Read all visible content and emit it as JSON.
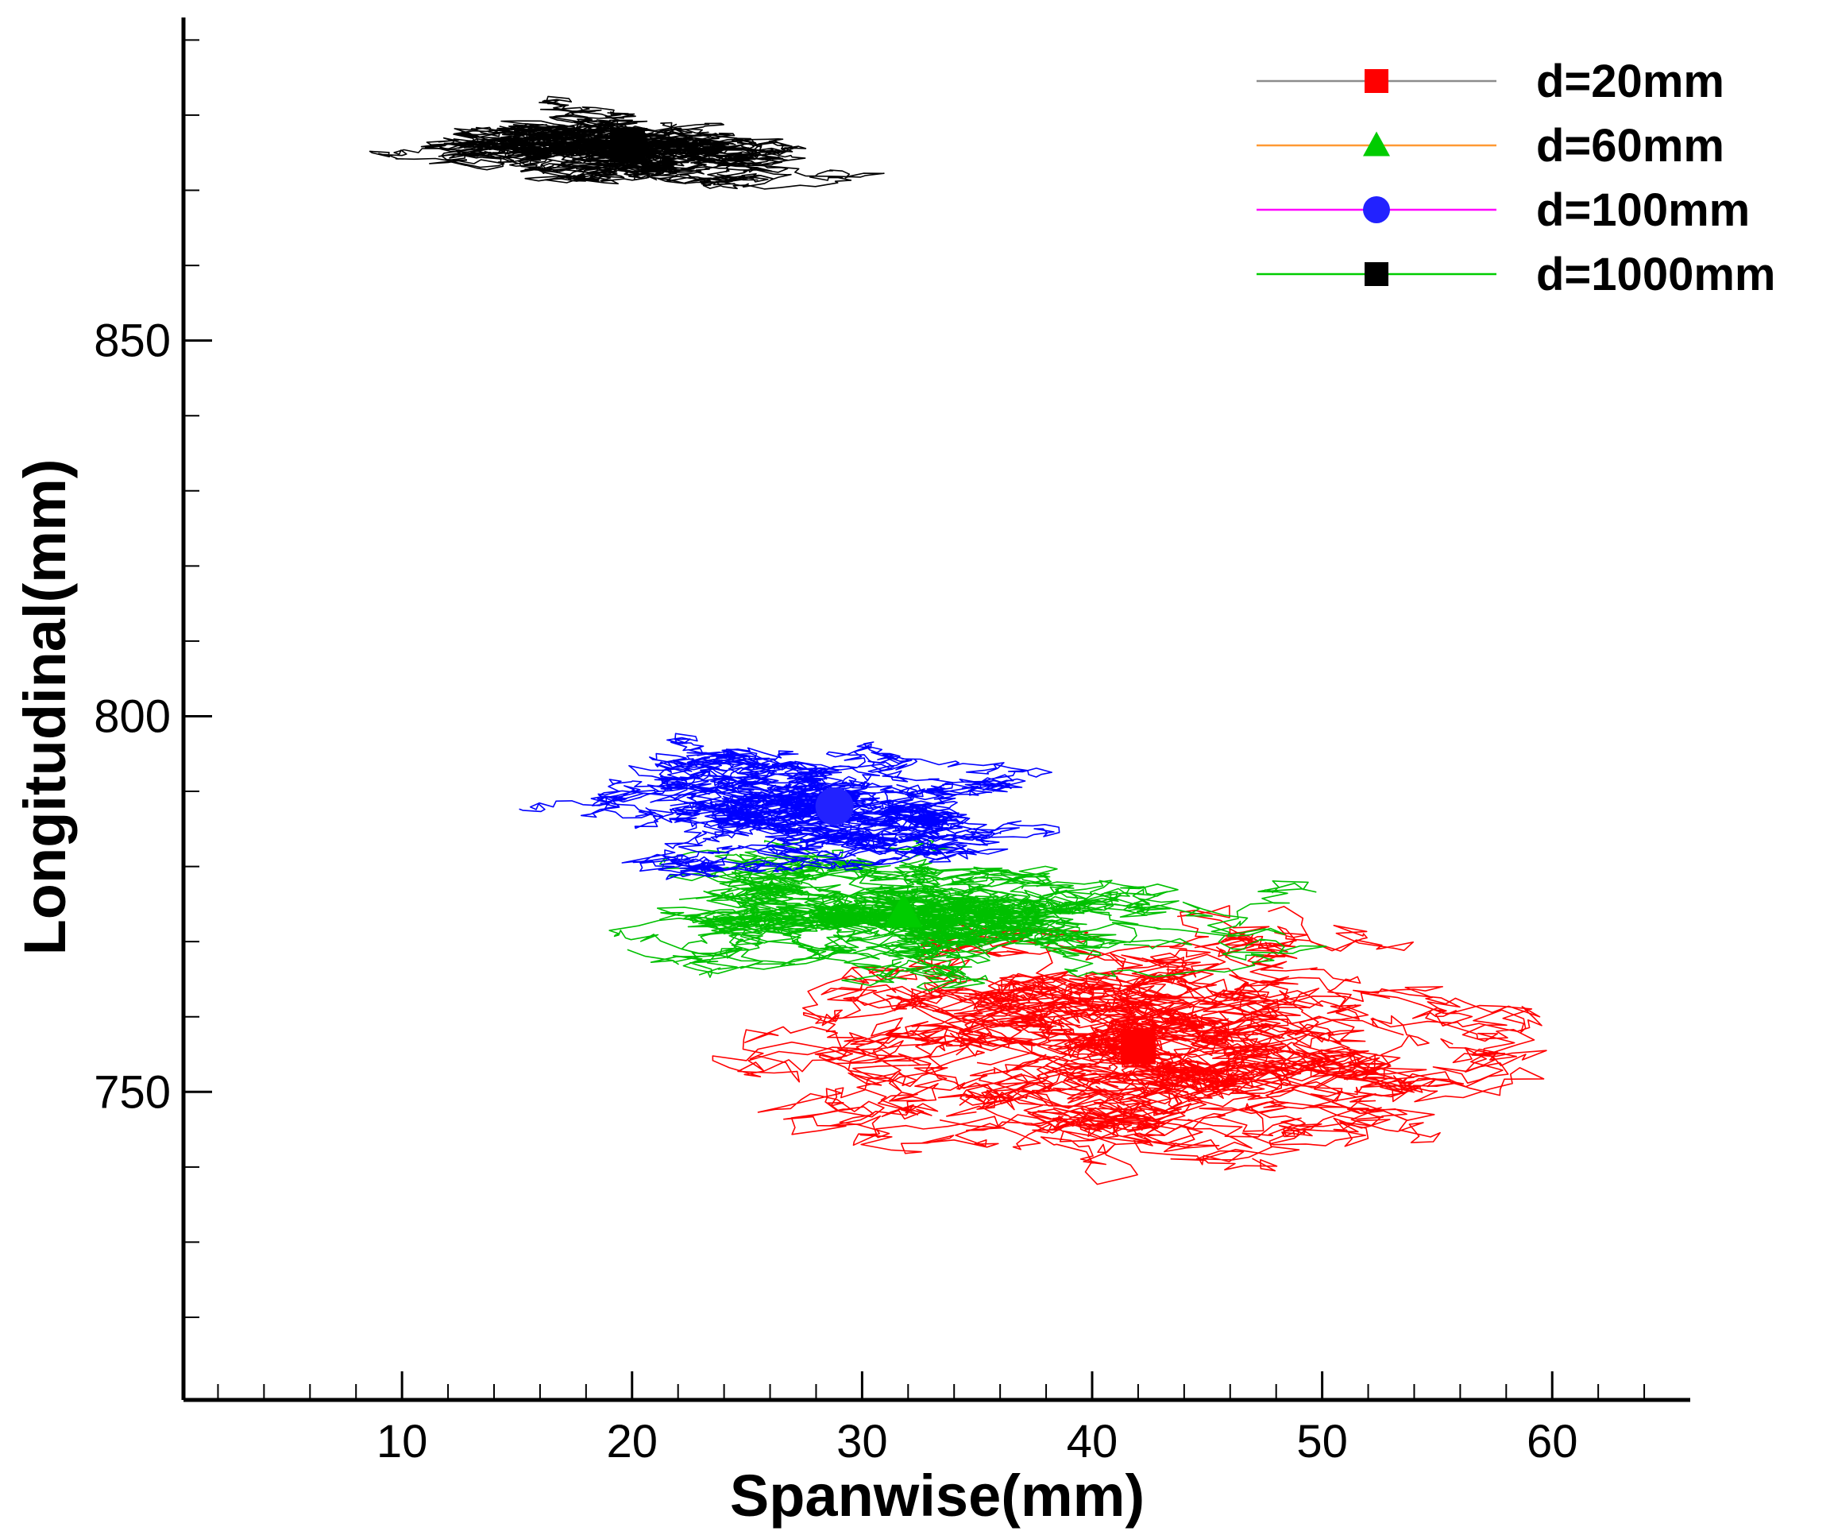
{
  "chart_data": {
    "type": "scatter",
    "title": "",
    "xlabel": "Spanwise(mm)",
    "ylabel": "Longitudinal(mm)",
    "xlim": [
      0.5,
      66
    ],
    "ylim": [
      709,
      893
    ],
    "x_ticks": [
      10,
      20,
      30,
      40,
      50,
      60
    ],
    "y_ticks": [
      750,
      800,
      850
    ],
    "x_minor_step": 2,
    "y_minor_step": 10,
    "grid": false,
    "legend_position": "top-right",
    "series": [
      {
        "name": "d=20mm",
        "line_color": "#8c8c8c",
        "marker": "square",
        "marker_color": "#ff0000",
        "cloud_color": "#ff0000",
        "center": [
          42,
          756
        ],
        "spread": [
          14,
          14
        ],
        "range_x": [
          19,
          66
        ],
        "range_y": [
          713,
          790
        ],
        "paths": 16
      },
      {
        "name": "d=60mm",
        "line_color": "#ff9933",
        "marker": "triangle",
        "marker_color": "#00cc00",
        "cloud_color": "#00c000",
        "center": [
          31.8,
          774
        ],
        "spread": [
          12,
          9
        ],
        "range_x": [
          8.5,
          55
        ],
        "range_y": [
          751,
          797
        ],
        "paths": 14
      },
      {
        "name": "d=100mm",
        "line_color": "#ff00ff",
        "marker": "circle",
        "marker_color": "#2222ff",
        "cloud_color": "#0000ff",
        "center": [
          28.8,
          788
        ],
        "spread": [
          9,
          7
        ],
        "range_x": [
          9,
          52
        ],
        "range_y": [
          769,
          813
        ],
        "paths": 14
      },
      {
        "name": "d=1000mm",
        "line_color": "#00cc00",
        "marker": "square",
        "marker_color": "#000000",
        "cloud_color": "#000000",
        "center": [
          19.8,
          876
        ],
        "spread": [
          9,
          5
        ],
        "range_x": [
          2.5,
          37
        ],
        "range_y": [
          849,
          891
        ],
        "paths": 14
      }
    ]
  }
}
